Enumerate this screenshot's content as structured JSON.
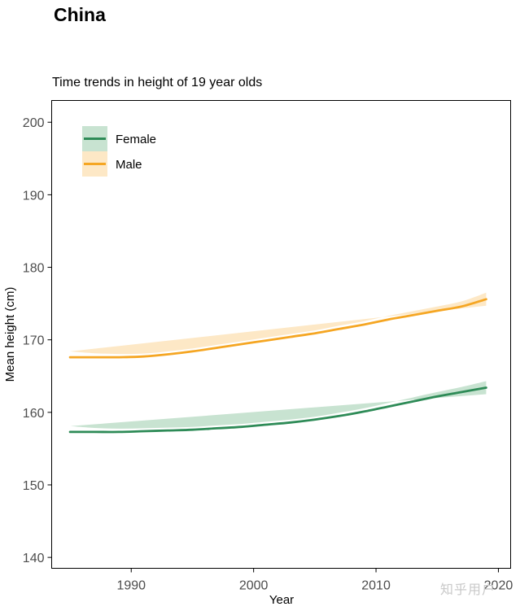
{
  "page": {
    "title": "China",
    "watermark": "知乎用户"
  },
  "chart_data": {
    "type": "line",
    "title": "Time trends in height of 19 year olds",
    "xlabel": "Year",
    "ylabel": "Mean height (cm)",
    "xlim": [
      1983.5,
      2021
    ],
    "ylim": [
      138.5,
      203
    ],
    "xticks": [
      1990,
      2000,
      2010,
      2020
    ],
    "yticks": [
      140,
      150,
      160,
      170,
      180,
      190,
      200
    ],
    "grid": false,
    "legend_position": "top-left",
    "x": [
      1985,
      1987,
      1989,
      1991,
      1993,
      1995,
      1997,
      1999,
      2001,
      2003,
      2005,
      2007,
      2009,
      2011,
      2013,
      2015,
      2017,
      2019
    ],
    "series": [
      {
        "name": "Female",
        "color": "#2e8b57",
        "band_color": "#c8e3d1",
        "values": [
          157.3,
          157.3,
          157.3,
          157.4,
          157.5,
          157.6,
          157.8,
          158.0,
          158.3,
          158.6,
          159.0,
          159.5,
          160.1,
          160.8,
          161.5,
          162.2,
          162.8,
          163.4
        ],
        "band_halfwidth": [
          0.8,
          0.55,
          0.45,
          0.4,
          0.4,
          0.4,
          0.4,
          0.4,
          0.4,
          0.4,
          0.4,
          0.45,
          0.45,
          0.5,
          0.55,
          0.6,
          0.7,
          0.9
        ]
      },
      {
        "name": "Male",
        "color": "#f5a623",
        "band_color": "#fde8c6",
        "values": [
          167.6,
          167.6,
          167.6,
          167.7,
          168.0,
          168.4,
          168.9,
          169.4,
          169.9,
          170.4,
          170.9,
          171.5,
          172.1,
          172.8,
          173.4,
          174.0,
          174.6,
          175.6
        ],
        "band_halfwidth": [
          0.8,
          0.55,
          0.45,
          0.4,
          0.4,
          0.4,
          0.4,
          0.4,
          0.4,
          0.4,
          0.4,
          0.45,
          0.45,
          0.5,
          0.55,
          0.6,
          0.7,
          0.9
        ]
      }
    ]
  }
}
